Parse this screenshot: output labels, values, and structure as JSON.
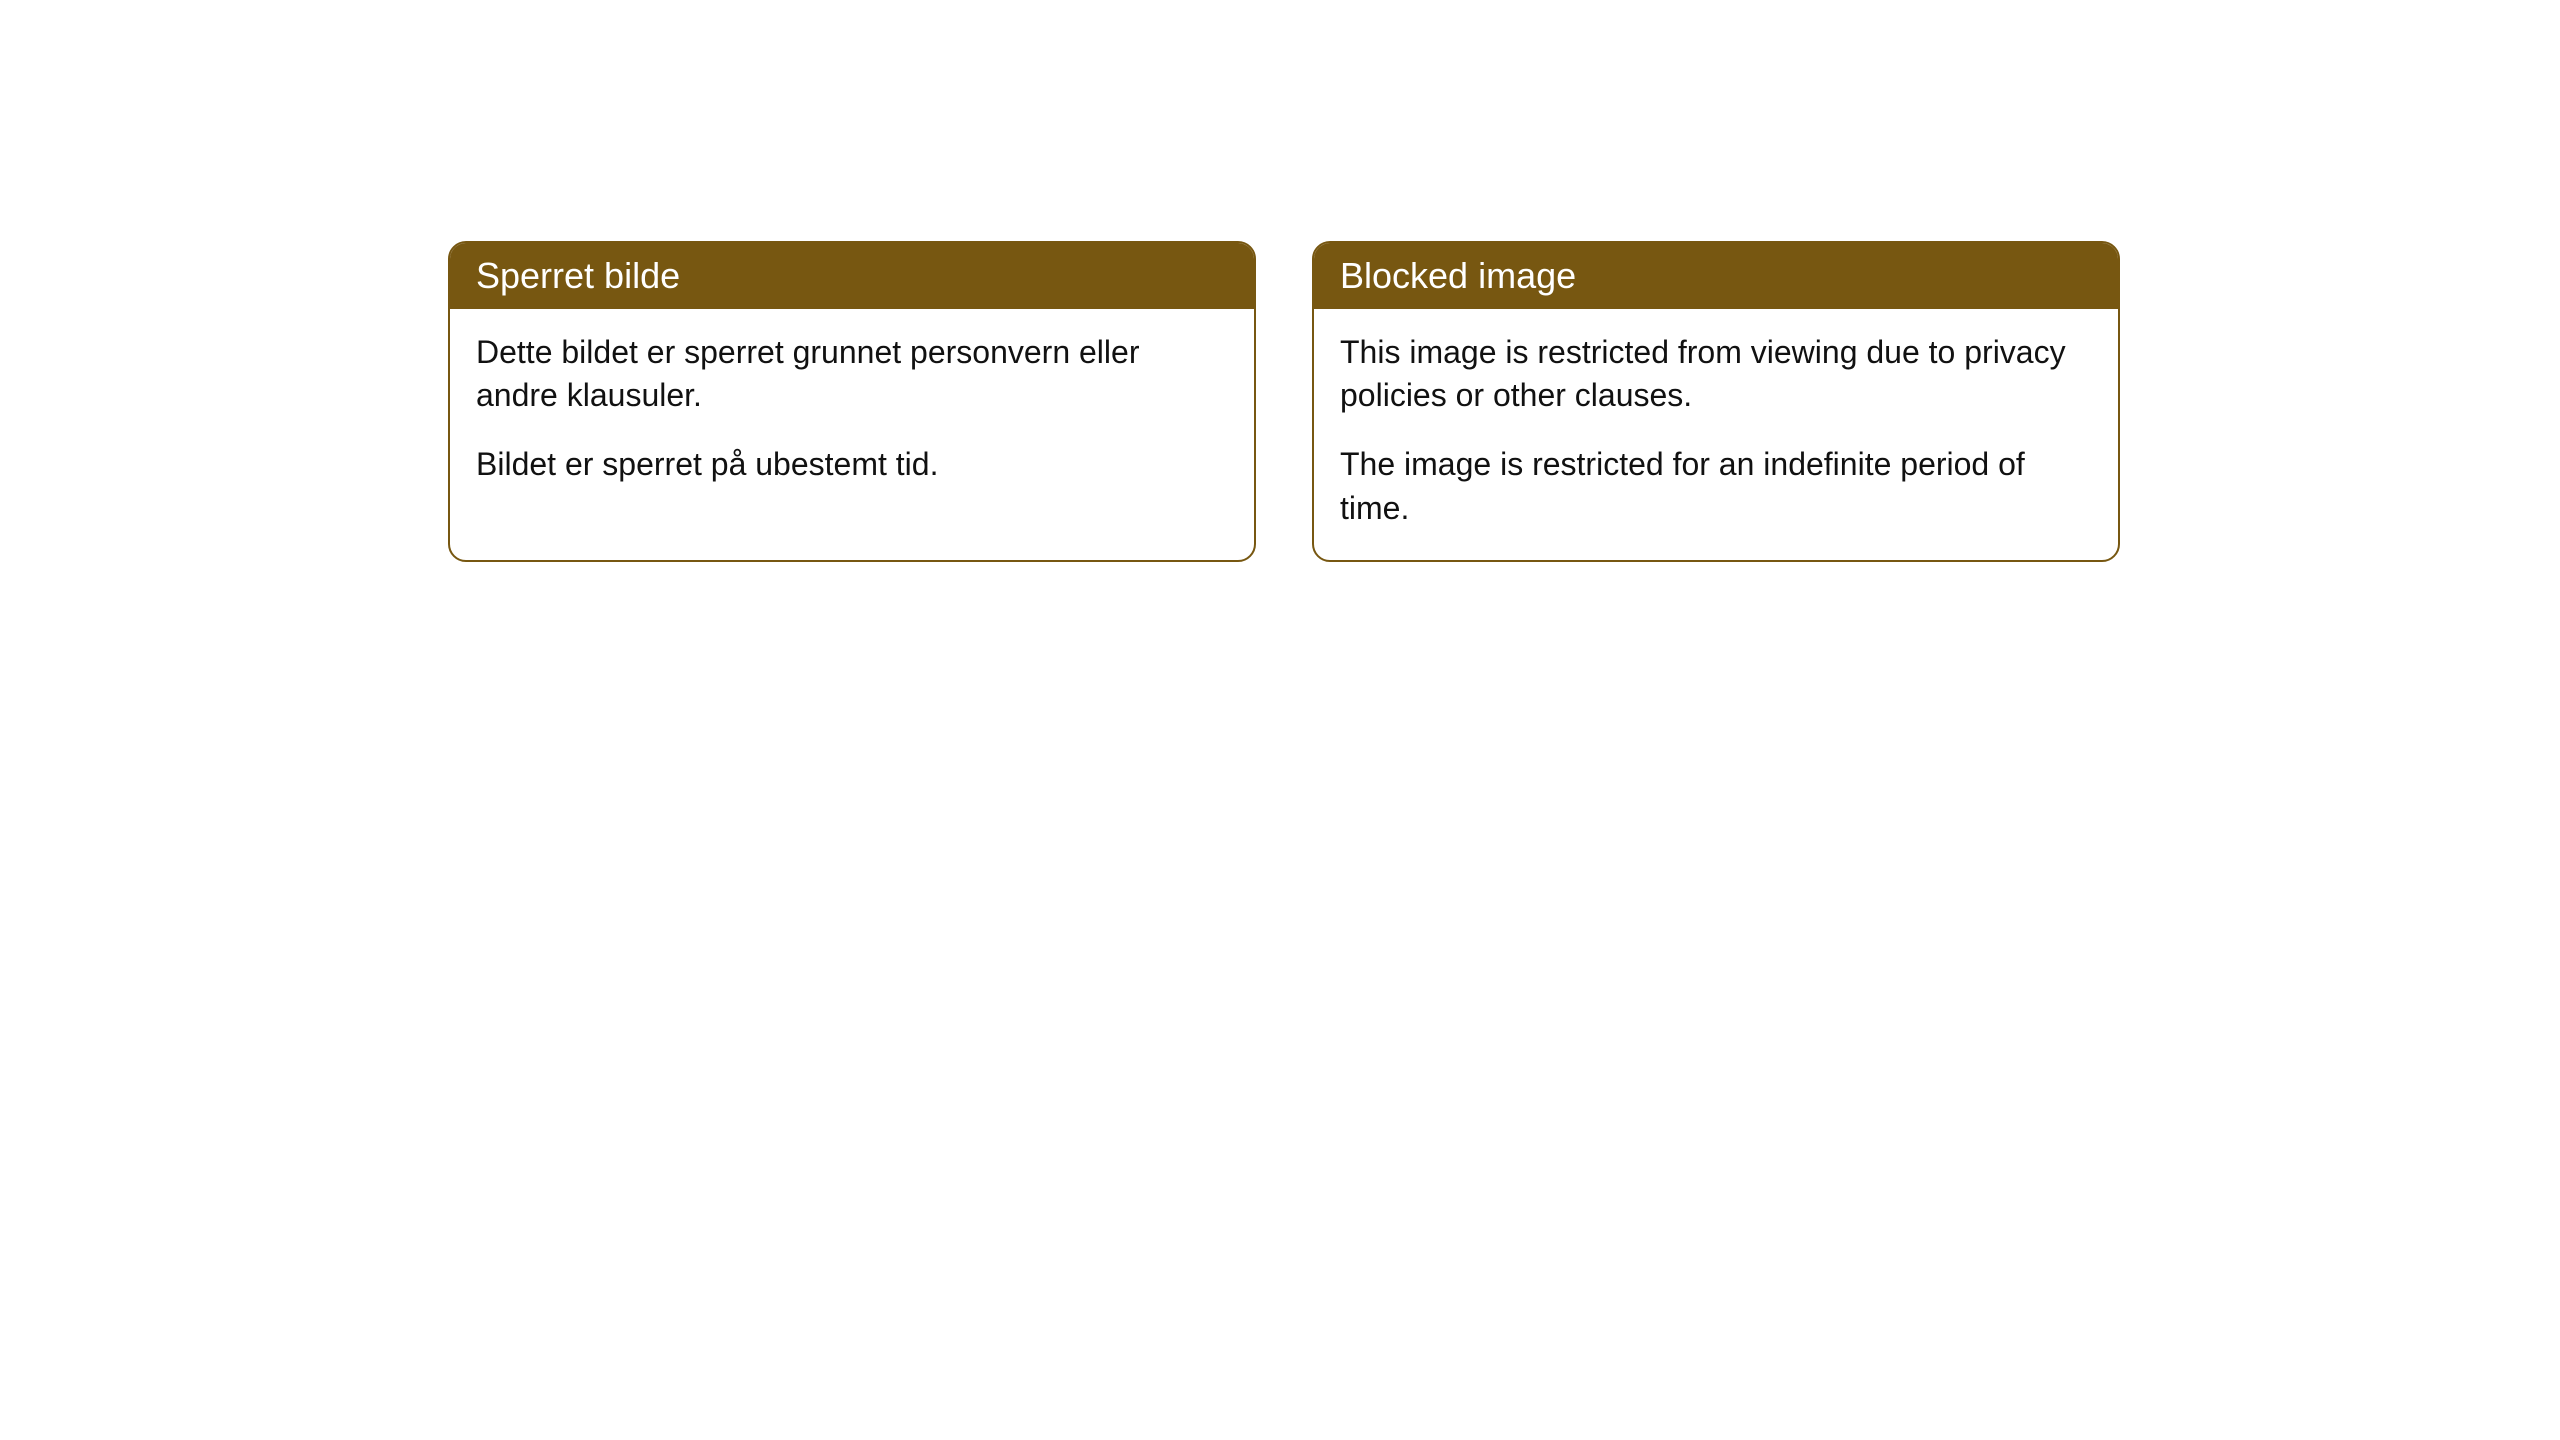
{
  "cards": [
    {
      "title": "Sperret bilde",
      "paragraph1": "Dette bildet er sperret grunnet personvern eller andre klausuler.",
      "paragraph2": "Bildet er sperret på ubestemt tid."
    },
    {
      "title": "Blocked image",
      "paragraph1": "This image is restricted from viewing due to privacy policies or other clauses.",
      "paragraph2": "The image is restricted for an indefinite period of time."
    }
  ],
  "style": {
    "header_bg": "#775711",
    "header_text_color": "#ffffff",
    "border_color": "#775711",
    "body_text_color": "#111111",
    "background_color": "#ffffff",
    "border_radius": 18,
    "title_fontsize": 36,
    "body_fontsize": 32
  }
}
